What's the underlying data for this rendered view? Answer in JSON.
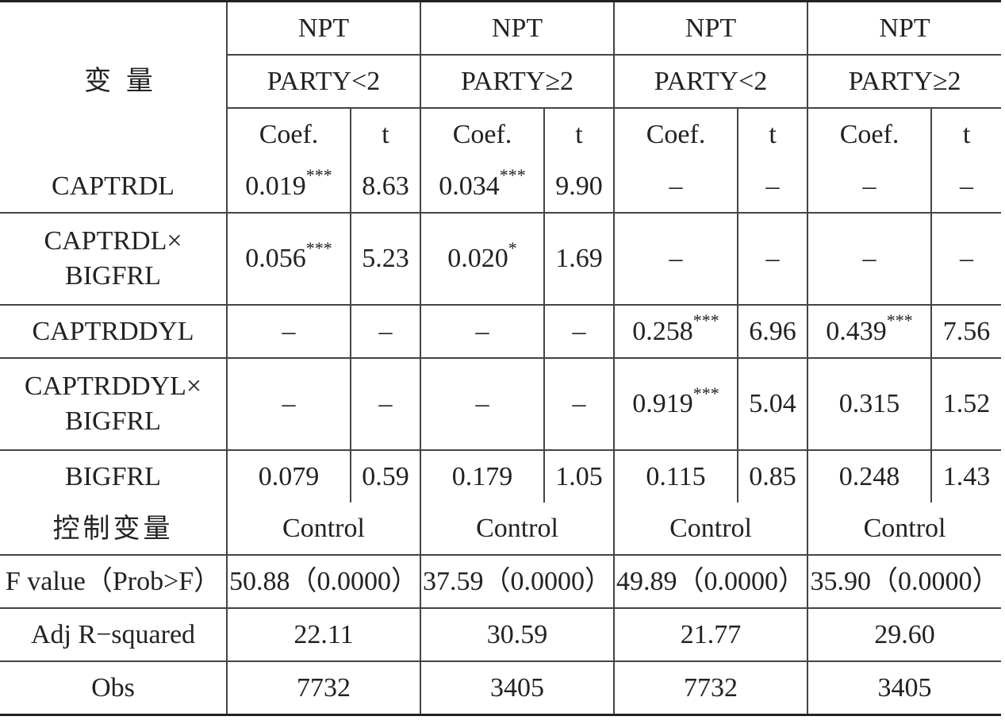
{
  "header": {
    "variable_label": "变 量",
    "groups": [
      {
        "top": "NPT",
        "sub": "PARTY<2"
      },
      {
        "top": "NPT",
        "sub": "PARTY≥2"
      },
      {
        "top": "NPT",
        "sub": "PARTY<2"
      },
      {
        "top": "NPT",
        "sub": "PARTY≥2"
      }
    ],
    "coef_label": "Coef.",
    "t_label": "t"
  },
  "rows": [
    {
      "label": "CAPTRDL",
      "cells": [
        {
          "v": "0.019",
          "sig": "***"
        },
        {
          "v": "8.63"
        },
        {
          "v": "0.034",
          "sig": "***"
        },
        {
          "v": "9.90"
        },
        {
          "v": "–"
        },
        {
          "v": "–"
        },
        {
          "v": "–"
        },
        {
          "v": "–"
        }
      ]
    },
    {
      "label_line1": "CAPTRDL×",
      "label_line2": "BIGFRL",
      "cells": [
        {
          "v": "0.056",
          "sig": "***"
        },
        {
          "v": "5.23"
        },
        {
          "v": "0.020",
          "sig": "*"
        },
        {
          "v": "1.69"
        },
        {
          "v": "–"
        },
        {
          "v": "–"
        },
        {
          "v": "–"
        },
        {
          "v": "–"
        }
      ]
    },
    {
      "label": "CAPTRDDYL",
      "cells": [
        {
          "v": "–"
        },
        {
          "v": "–"
        },
        {
          "v": "–"
        },
        {
          "v": "–"
        },
        {
          "v": "0.258",
          "sig": "***"
        },
        {
          "v": "6.96"
        },
        {
          "v": "0.439",
          "sig": "***"
        },
        {
          "v": "7.56"
        }
      ]
    },
    {
      "label_line1": "CAPTRDDYL×",
      "label_line2": "BIGFRL",
      "cells": [
        {
          "v": "–"
        },
        {
          "v": "–"
        },
        {
          "v": "–"
        },
        {
          "v": "–"
        },
        {
          "v": "0.919",
          "sig": "***"
        },
        {
          "v": "5.04"
        },
        {
          "v": "0.315"
        },
        {
          "v": "1.52"
        }
      ]
    },
    {
      "label": "BIGFRL",
      "cells": [
        {
          "v": "0.079"
        },
        {
          "v": "0.59"
        },
        {
          "v": "0.179"
        },
        {
          "v": "1.05"
        },
        {
          "v": "0.115"
        },
        {
          "v": "0.85"
        },
        {
          "v": "0.248"
        },
        {
          "v": "1.43"
        }
      ]
    }
  ],
  "summary": [
    {
      "label": "控制变量",
      "values": [
        "Control",
        "Control",
        "Control",
        "Control"
      ]
    },
    {
      "label": "F value（Prob>F）",
      "values": [
        "50.88（0.0000）",
        "37.59（0.0000）",
        "49.89（0.0000）",
        "35.90（0.0000）"
      ]
    },
    {
      "label": "Adj R−squared",
      "values": [
        "22.11",
        "30.59",
        "21.77",
        "29.60"
      ]
    },
    {
      "label": "Obs",
      "values": [
        "7732",
        "3405",
        "7732",
        "3405"
      ]
    }
  ]
}
